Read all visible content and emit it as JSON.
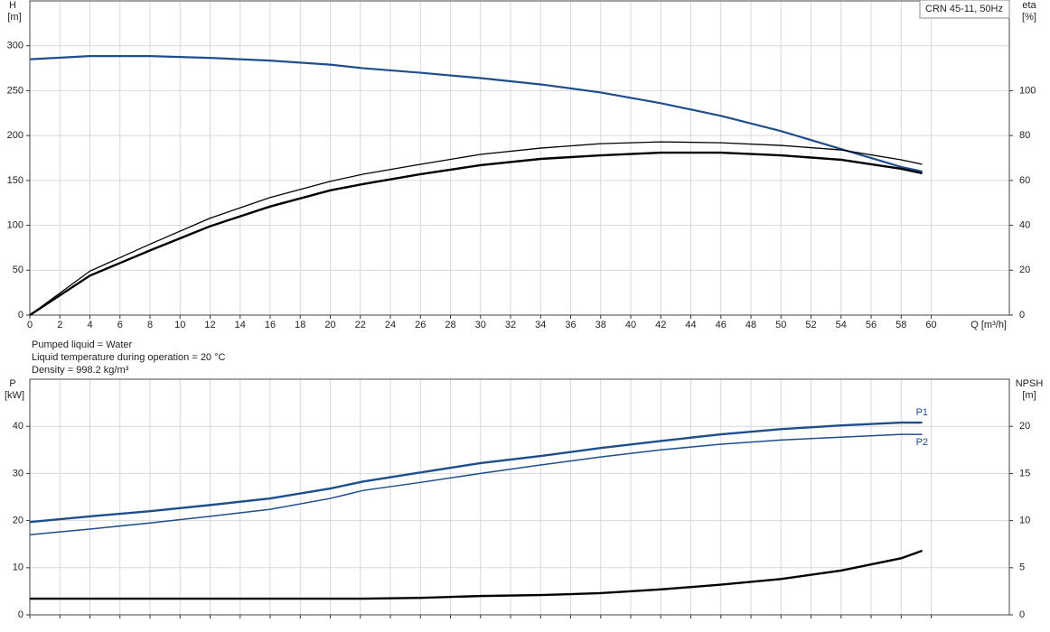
{
  "chart_data": [
    {
      "type": "line",
      "title": "CRN 45-11, 50Hz",
      "ylabel": "H",
      "yunit": "[m]",
      "y2label": "eta",
      "y2unit": "[%]",
      "xlabel": "Q [m³/h]",
      "xlim": [
        0,
        65.2
      ],
      "xticks": [
        0,
        2,
        4,
        6,
        8,
        10,
        12,
        14,
        16,
        18,
        20,
        22,
        24,
        26,
        28,
        30,
        32,
        34,
        36,
        38,
        40,
        42,
        44,
        46,
        48,
        50,
        52,
        54,
        56,
        58,
        60
      ],
      "ylim": [
        0,
        350
      ],
      "yticks": [
        0,
        50,
        100,
        150,
        200,
        250,
        300
      ],
      "y2lim": [
        0,
        140
      ],
      "y2ticks": [
        0,
        20,
        40,
        60,
        80,
        100
      ],
      "grid": true,
      "xtick_labels": true,
      "x": [
        0,
        4,
        8,
        12,
        16,
        20,
        22.2,
        26,
        30,
        34,
        38,
        42,
        46,
        50,
        54,
        58,
        59.4
      ],
      "series": [
        {
          "color": "#1f4e8c",
          "width": 2.2,
          "values": [
            285,
            288.5,
            288.5,
            286.5,
            283.5,
            279,
            275,
            270,
            264,
            257,
            248,
            236,
            222,
            205,
            185,
            165,
            160
          ]
        },
        {
          "color": "#000000",
          "width": 1.3,
          "axis": "y2",
          "values": [
            0,
            19.6,
            31.6,
            43.2,
            52.4,
            59.6,
            62.8,
            67.2,
            71.6,
            74.4,
            76.4,
            77.2,
            76.8,
            75.6,
            73.6,
            69.2,
            67.2
          ]
        },
        {
          "color": "#000000",
          "width": 2.4,
          "axis": "y2",
          "values": [
            0,
            17.6,
            28.8,
            39.6,
            48.4,
            55.6,
            58.4,
            62.8,
            66.8,
            69.6,
            71.2,
            72.4,
            72.4,
            71.2,
            69.2,
            65.2,
            63.2
          ]
        }
      ]
    },
    {
      "type": "line",
      "ylabel": "P",
      "yunit": "[kW]",
      "y2label": "NPSH",
      "y2unit": "[m]",
      "xlim": [
        0,
        65.2
      ],
      "xticks": [
        0,
        2,
        4,
        6,
        8,
        10,
        12,
        14,
        16,
        18,
        20,
        22,
        24,
        26,
        28,
        30,
        32,
        34,
        36,
        38,
        40,
        42,
        44,
        46,
        48,
        50,
        52,
        54,
        56,
        58,
        60
      ],
      "ylim": [
        0,
        50
      ],
      "yticks": [
        0,
        10,
        20,
        30,
        40
      ],
      "y2lim": [
        0,
        25
      ],
      "y2ticks": [
        0,
        5,
        10,
        15,
        20
      ],
      "grid": true,
      "xtick_labels": false,
      "x": [
        0,
        4,
        8,
        12,
        16,
        20,
        22.2,
        26,
        30,
        34,
        38,
        42,
        46,
        50,
        54,
        58,
        59.4
      ],
      "series": [
        {
          "name": "P1",
          "color": "#1f4e8c",
          "width": 2.4,
          "values": [
            19.7,
            20.9,
            22.0,
            23.3,
            24.7,
            26.8,
            28.3,
            30.2,
            32.2,
            33.7,
            35.4,
            36.9,
            38.3,
            39.4,
            40.2,
            40.8,
            40.8
          ]
        },
        {
          "name": "P2",
          "color": "#1f4e8c",
          "width": 1.5,
          "values": [
            17.0,
            18.2,
            19.5,
            20.9,
            22.4,
            24.7,
            26.4,
            28.1,
            30.0,
            31.8,
            33.5,
            35.0,
            36.2,
            37.1,
            37.7,
            38.3,
            38.3
          ]
        },
        {
          "color": "#000000",
          "width": 2.4,
          "axis": "y2",
          "values": [
            1.72,
            1.72,
            1.72,
            1.72,
            1.72,
            1.72,
            1.72,
            1.8,
            2.0,
            2.1,
            2.3,
            2.7,
            3.2,
            3.8,
            4.7,
            6.0,
            6.8
          ]
        }
      ]
    }
  ],
  "info_lines": [
    "Pumped liquid = Water",
    "Liquid temperature during operation = 20 °C",
    "Density = 998.2 kg/m³"
  ]
}
